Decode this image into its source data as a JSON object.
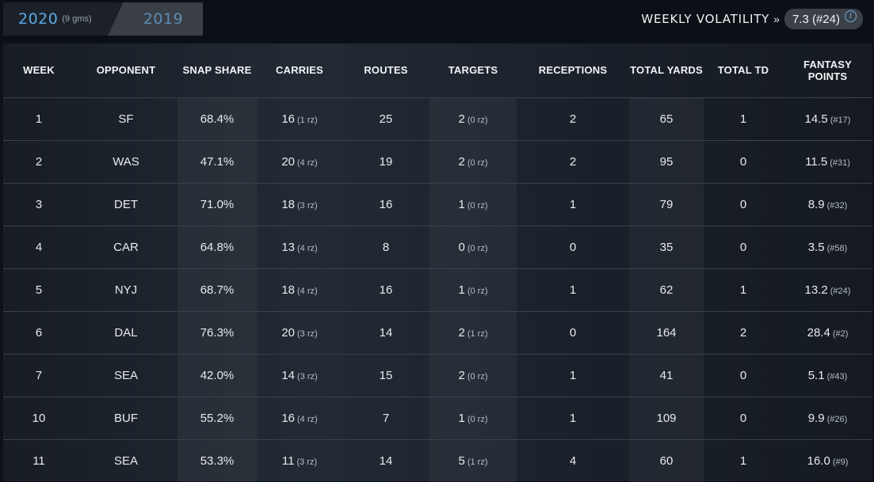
{
  "season_tabs": {
    "active": {
      "year": "2020",
      "games": "(9 gms)"
    },
    "inactive": {
      "year": "2019"
    }
  },
  "volatility": {
    "label": "WEEKLY VOLATILITY",
    "arrow": "»",
    "value": "7.3 (#24)",
    "info_icon": "info-icon"
  },
  "columns": [
    "WEEK",
    "OPPONENT",
    "SNAP SHARE",
    "CARRIES",
    "ROUTES",
    "TARGETS",
    "RECEPTIONS",
    "TOTAL YARDS",
    "TOTAL TD",
    "FANTASY POINTS"
  ],
  "rows": [
    {
      "week": "1",
      "opp": "SF",
      "snap": "68.4%",
      "carries": "16",
      "carries_rz": "(1 rz)",
      "routes": "25",
      "targets": "2",
      "targets_rz": "(0 rz)",
      "rec": "2",
      "yards": "65",
      "td": "1",
      "fp": "14.5",
      "fp_rank": "(#17)"
    },
    {
      "week": "2",
      "opp": "WAS",
      "snap": "47.1%",
      "carries": "20",
      "carries_rz": "(4 rz)",
      "routes": "19",
      "targets": "2",
      "targets_rz": "(0 rz)",
      "rec": "2",
      "yards": "95",
      "td": "0",
      "fp": "11.5",
      "fp_rank": "(#31)"
    },
    {
      "week": "3",
      "opp": "DET",
      "snap": "71.0%",
      "carries": "18",
      "carries_rz": "(3 rz)",
      "routes": "16",
      "targets": "1",
      "targets_rz": "(0 rz)",
      "rec": "1",
      "yards": "79",
      "td": "0",
      "fp": "8.9",
      "fp_rank": "(#32)"
    },
    {
      "week": "4",
      "opp": "CAR",
      "snap": "64.8%",
      "carries": "13",
      "carries_rz": "(4 rz)",
      "routes": "8",
      "targets": "0",
      "targets_rz": "(0 rz)",
      "rec": "0",
      "yards": "35",
      "td": "0",
      "fp": "3.5",
      "fp_rank": "(#58)"
    },
    {
      "week": "5",
      "opp": "NYJ",
      "snap": "68.7%",
      "carries": "18",
      "carries_rz": "(4 rz)",
      "routes": "16",
      "targets": "1",
      "targets_rz": "(0 rz)",
      "rec": "1",
      "yards": "62",
      "td": "1",
      "fp": "13.2",
      "fp_rank": "(#24)"
    },
    {
      "week": "6",
      "opp": "DAL",
      "snap": "76.3%",
      "carries": "20",
      "carries_rz": "(3 rz)",
      "routes": "14",
      "targets": "2",
      "targets_rz": "(1 rz)",
      "rec": "0",
      "yards": "164",
      "td": "2",
      "fp": "28.4",
      "fp_rank": "(#2)"
    },
    {
      "week": "7",
      "opp": "SEA",
      "snap": "42.0%",
      "carries": "14",
      "carries_rz": "(3 rz)",
      "routes": "15",
      "targets": "2",
      "targets_rz": "(0 rz)",
      "rec": "1",
      "yards": "41",
      "td": "0",
      "fp": "5.1",
      "fp_rank": "(#43)"
    },
    {
      "week": "10",
      "opp": "BUF",
      "snap": "55.2%",
      "carries": "16",
      "carries_rz": "(4 rz)",
      "routes": "7",
      "targets": "1",
      "targets_rz": "(0 rz)",
      "rec": "1",
      "yards": "109",
      "td": "0",
      "fp": "9.9",
      "fp_rank": "(#26)"
    },
    {
      "week": "11",
      "opp": "SEA",
      "snap": "53.3%",
      "carries": "11",
      "carries_rz": "(3 rz)",
      "routes": "14",
      "targets": "5",
      "targets_rz": "(1 rz)",
      "rec": "4",
      "yards": "60",
      "td": "1",
      "fp": "16.0",
      "fp_rank": "(#9)"
    }
  ]
}
